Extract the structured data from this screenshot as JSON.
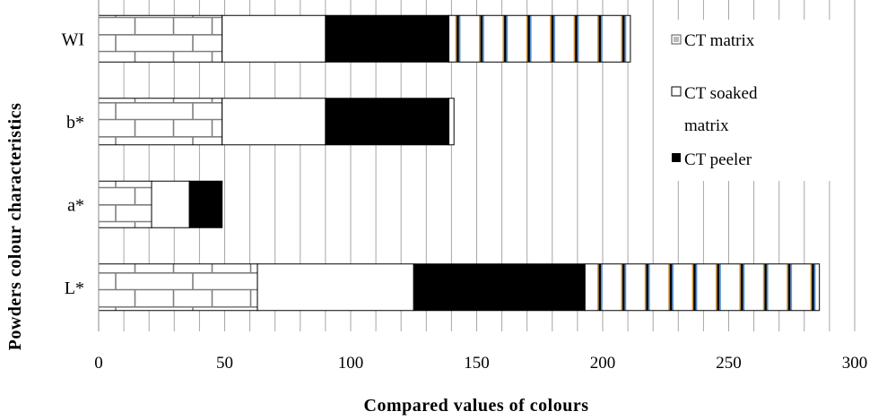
{
  "chart_data": {
    "type": "bar",
    "orientation": "horizontal",
    "stacked": true,
    "categories": [
      "L*",
      "a*",
      "b*",
      "WI"
    ],
    "series": [
      {
        "name": "CT matrix",
        "values": [
          63,
          21,
          49,
          49
        ],
        "color": "#ffffff",
        "pattern": "brick"
      },
      {
        "name": "CT soaked matrix",
        "values": [
          62,
          15,
          41,
          41
        ],
        "color": "#ffffff",
        "pattern": "none"
      },
      {
        "name": "CT peeler",
        "values": [
          68,
          13,
          49,
          49
        ],
        "color": "#000000",
        "pattern": "solid"
      },
      {
        "values": [
          93,
          0,
          2,
          72
        ],
        "color": "#ffffff",
        "pattern": "stripes"
      }
    ],
    "xlim": [
      0,
      300
    ],
    "xticks": [
      "0",
      "50",
      "100",
      "150",
      "200",
      "250",
      "300"
    ],
    "xlabel": "Compared values of colours",
    "ylabel": "Powders colour characteristics",
    "grid": "vertical",
    "legend": "right"
  }
}
